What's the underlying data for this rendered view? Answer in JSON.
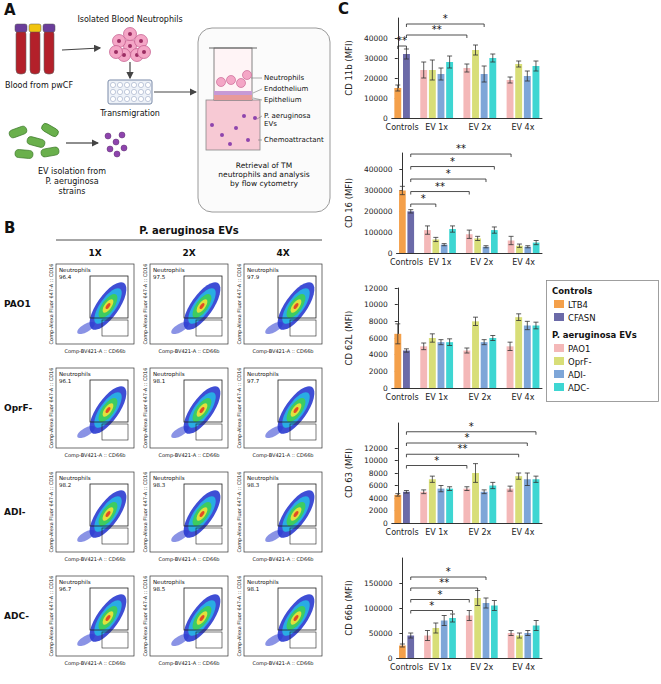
{
  "panel_A": {
    "letter": "A",
    "labels": {
      "blood": "Blood from pwCF",
      "neutrophils_isolated": "Isolated Blood Neutrophils",
      "transmigration": "Transmigration",
      "ev_isolation": "EV isolation from P. aeruginosa strains",
      "insert_neutrophils": "Neutrophils",
      "endothelium": "Endothelium",
      "epithelium": "Epithelium",
      "evs": "P. aeruginosa EVs",
      "chemoattractant": "Chemoattractant",
      "retrieval": "Retrieval of TM neutrophils and analysis by flow cytometry"
    }
  },
  "panel_B": {
    "letter": "B",
    "title": "P. aeruginosa EVs",
    "columns": [
      "1X",
      "2X",
      "4X"
    ],
    "rows": [
      "PAO1",
      "OprF-",
      "ADI-",
      "ADC-"
    ],
    "x_label": "Comp-BV421-A :: CD66b",
    "y_label": "Comp-Alexa Fluor 647-A :: CD16",
    "gate_label": "Neutrophils",
    "gate_percent": [
      [
        96.4,
        97.5,
        97.9
      ],
      [
        96.1,
        98.1,
        97.7
      ],
      [
        98.2,
        98.3,
        98.3
      ],
      [
        96.7,
        98.5,
        98.1
      ]
    ]
  },
  "panel_C": {
    "letter": "C",
    "legend_groups": [
      {
        "title": "Controls",
        "series": [
          "LTB4",
          "CFASN"
        ]
      },
      {
        "title": "P. aeruginosa EVs",
        "series": [
          "PAO1",
          "OprF-",
          "ADI-",
          "ADC-"
        ]
      }
    ]
  },
  "chart_data": [
    {
      "type": "bar",
      "y_label": "CD 11b (MFI)",
      "categories": [
        "Controls",
        "EV 1x",
        "EV 2x",
        "EV 4x"
      ],
      "ylim": [
        0,
        50000
      ],
      "yticks": [
        0,
        10000,
        20000,
        30000,
        40000
      ],
      "series": [
        {
          "name": "LTB4",
          "color": "#F4A04A",
          "values": [
            15000,
            null,
            null,
            null
          ],
          "errors": [
            1500,
            null,
            null,
            null
          ]
        },
        {
          "name": "CFASN",
          "color": "#6B6AA8",
          "values": [
            32000,
            null,
            null,
            null
          ],
          "errors": [
            2500,
            null,
            null,
            null
          ]
        },
        {
          "name": "PAO1",
          "color": "#F4B8B8",
          "values": [
            null,
            24000,
            25000,
            19000
          ],
          "errors": [
            null,
            4000,
            2000,
            1500
          ]
        },
        {
          "name": "OprF-",
          "color": "#D8DE78",
          "values": [
            null,
            24000,
            34000,
            27000
          ],
          "errors": [
            null,
            5000,
            2500,
            1500
          ]
        },
        {
          "name": "ADI-",
          "color": "#7EA6D8",
          "values": [
            null,
            22000,
            22000,
            21000
          ],
          "errors": [
            null,
            3000,
            4000,
            2500
          ]
        },
        {
          "name": "ADC-",
          "color": "#3ED6D2",
          "values": [
            null,
            28000,
            30000,
            26000
          ],
          "errors": [
            null,
            3000,
            2000,
            2500
          ]
        }
      ],
      "significance": [
        {
          "from": [
            "Controls",
            "LTB4"
          ],
          "to": [
            "Controls",
            "CFASN"
          ],
          "y": 36000,
          "label": "**"
        },
        {
          "from": [
            "Controls",
            "CFASN"
          ],
          "to": [
            "EV 2x",
            "PAO1"
          ],
          "y": 41500,
          "label": "**"
        },
        {
          "from": [
            "Controls",
            "CFASN"
          ],
          "to": [
            "EV 2x",
            "ADI-"
          ],
          "y": 47000,
          "label": "*"
        }
      ]
    },
    {
      "type": "bar",
      "y_label": "CD 16 (MFI)",
      "categories": [
        "Controls",
        "EV 1x",
        "EV 2x",
        "EV 4x"
      ],
      "ylim": [
        0,
        480000
      ],
      "yticks": [
        0,
        100000,
        200000,
        300000,
        400000
      ],
      "series": [
        {
          "name": "LTB4",
          "color": "#F4A04A",
          "values": [
            300000,
            null,
            null,
            null
          ],
          "errors": [
            20000,
            null,
            null,
            null
          ]
        },
        {
          "name": "CFASN",
          "color": "#6B6AA8",
          "values": [
            200000,
            null,
            null,
            null
          ],
          "errors": [
            8000,
            null,
            null,
            null
          ]
        },
        {
          "name": "PAO1",
          "color": "#F4B8B8",
          "values": [
            null,
            110000,
            90000,
            60000
          ],
          "errors": [
            null,
            20000,
            20000,
            20000
          ]
        },
        {
          "name": "OprF-",
          "color": "#D8DE78",
          "values": [
            null,
            65000,
            70000,
            35000
          ],
          "errors": [
            null,
            10000,
            10000,
            8000
          ]
        },
        {
          "name": "ADI-",
          "color": "#7EA6D8",
          "values": [
            null,
            40000,
            30000,
            30000
          ],
          "errors": [
            null,
            5000,
            5000,
            5000
          ]
        },
        {
          "name": "ADC-",
          "color": "#3ED6D2",
          "values": [
            null,
            115000,
            110000,
            50000
          ],
          "errors": [
            null,
            15000,
            15000,
            10000
          ]
        }
      ],
      "significance": [
        {
          "from": [
            "Controls",
            "CFASN"
          ],
          "to": [
            "EV 1x",
            "OprF-"
          ],
          "y": 235000,
          "label": "*"
        },
        {
          "from": [
            "Controls",
            "CFASN"
          ],
          "to": [
            "EV 2x",
            "PAO1"
          ],
          "y": 295000,
          "label": "**"
        },
        {
          "from": [
            "Controls",
            "CFASN"
          ],
          "to": [
            "EV 2x",
            "ADI-"
          ],
          "y": 355000,
          "label": "*"
        },
        {
          "from": [
            "Controls",
            "CFASN"
          ],
          "to": [
            "EV 2x",
            "ADC-"
          ],
          "y": 415000,
          "label": "*"
        },
        {
          "from": [
            "Controls",
            "CFASN"
          ],
          "to": [
            "EV 4x",
            "PAO1"
          ],
          "y": 475000,
          "label": "**"
        }
      ]
    },
    {
      "type": "bar",
      "y_label": "CD 62L (MFI)",
      "categories": [
        "Controls",
        "EV 1x",
        "EV 2x",
        "EV 4x"
      ],
      "ylim": [
        0,
        12000
      ],
      "yticks": [
        0,
        2000,
        4000,
        6000,
        8000,
        10000,
        12000
      ],
      "series": [
        {
          "name": "LTB4",
          "color": "#F4A04A",
          "values": [
            6500,
            null,
            null,
            null
          ],
          "errors": [
            1200,
            null,
            null,
            null
          ]
        },
        {
          "name": "CFASN",
          "color": "#6B6AA8",
          "values": [
            4500,
            null,
            null,
            null
          ],
          "errors": [
            200,
            null,
            null,
            null
          ]
        },
        {
          "name": "PAO1",
          "color": "#F4B8B8",
          "values": [
            null,
            5000,
            4500,
            5000
          ],
          "errors": [
            null,
            400,
            300,
            500
          ]
        },
        {
          "name": "OprF-",
          "color": "#D8DE78",
          "values": [
            null,
            6000,
            8000,
            8500
          ],
          "errors": [
            null,
            500,
            500,
            400
          ]
        },
        {
          "name": "ADI-",
          "color": "#7EA6D8",
          "values": [
            null,
            5500,
            5500,
            7500
          ],
          "errors": [
            null,
            300,
            300,
            500
          ]
        },
        {
          "name": "ADC-",
          "color": "#3ED6D2",
          "values": [
            null,
            5500,
            6000,
            7500
          ],
          "errors": [
            null,
            400,
            300,
            400
          ]
        }
      ],
      "significance": []
    },
    {
      "type": "bar",
      "y_label": "CD 63 (MFI)",
      "categories": [
        "Controls",
        "EV 1x",
        "EV 2x",
        "EV 4x"
      ],
      "ylim": [
        0,
        16000
      ],
      "yticks": [
        0,
        2000,
        4000,
        6000,
        8000,
        10000,
        12000
      ],
      "series": [
        {
          "name": "LTB4",
          "color": "#F4A04A",
          "values": [
            4500,
            null,
            null,
            null
          ],
          "errors": [
            200,
            null,
            null,
            null
          ]
        },
        {
          "name": "CFASN",
          "color": "#6B6AA8",
          "values": [
            5000,
            null,
            null,
            null
          ],
          "errors": [
            200,
            null,
            null,
            null
          ]
        },
        {
          "name": "PAO1",
          "color": "#F4B8B8",
          "values": [
            null,
            5000,
            5500,
            5500
          ],
          "errors": [
            null,
            300,
            300,
            400
          ]
        },
        {
          "name": "OprF-",
          "color": "#D8DE78",
          "values": [
            null,
            7000,
            8000,
            7500
          ],
          "errors": [
            null,
            500,
            1500,
            500
          ]
        },
        {
          "name": "ADI-",
          "color": "#7EA6D8",
          "values": [
            null,
            5500,
            5000,
            7000
          ],
          "errors": [
            null,
            500,
            300,
            1000
          ]
        },
        {
          "name": "ADC-",
          "color": "#3ED6D2",
          "values": [
            null,
            5500,
            6000,
            7000
          ],
          "errors": [
            null,
            300,
            500,
            500
          ]
        }
      ],
      "significance": [
        {
          "from": [
            "Controls",
            "CFASN"
          ],
          "to": [
            "EV 2x",
            "PAO1"
          ],
          "y": 9200,
          "label": "*"
        },
        {
          "from": [
            "Controls",
            "CFASN"
          ],
          "to": [
            "EV 4x",
            "OprF-"
          ],
          "y": 11000,
          "label": "**"
        },
        {
          "from": [
            "Controls",
            "CFASN"
          ],
          "to": [
            "EV 4x",
            "ADI-"
          ],
          "y": 12800,
          "label": "*"
        },
        {
          "from": [
            "Controls",
            "CFASN"
          ],
          "to": [
            "EV 4x",
            "ADC-"
          ],
          "y": 14600,
          "label": "*"
        }
      ]
    },
    {
      "type": "bar",
      "y_label": "CD 66b (MFI)",
      "categories": [
        "Controls",
        "EV 1x",
        "EV 2x",
        "EV 4x"
      ],
      "ylim": [
        0,
        200000
      ],
      "yticks": [
        0,
        50000,
        100000,
        150000
      ],
      "series": [
        {
          "name": "LTB4",
          "color": "#F4A04A",
          "values": [
            25000,
            null,
            null,
            null
          ],
          "errors": [
            3000,
            null,
            null,
            null
          ]
        },
        {
          "name": "CFASN",
          "color": "#6B6AA8",
          "values": [
            45000,
            null,
            null,
            null
          ],
          "errors": [
            5000,
            null,
            null,
            null
          ]
        },
        {
          "name": "PAO1",
          "color": "#F4B8B8",
          "values": [
            null,
            45000,
            85000,
            50000
          ],
          "errors": [
            null,
            10000,
            10000,
            5000
          ]
        },
        {
          "name": "OprF-",
          "color": "#D8DE78",
          "values": [
            null,
            60000,
            120000,
            45000
          ],
          "errors": [
            null,
            10000,
            15000,
            5000
          ]
        },
        {
          "name": "ADI-",
          "color": "#7EA6D8",
          "values": [
            null,
            75000,
            110000,
            50000
          ],
          "errors": [
            null,
            10000,
            10000,
            5000
          ]
        },
        {
          "name": "ADC-",
          "color": "#3ED6D2",
          "values": [
            null,
            80000,
            105000,
            65000
          ],
          "errors": [
            null,
            8000,
            10000,
            10000
          ]
        }
      ],
      "significance": [
        {
          "from": [
            "Controls",
            "CFASN"
          ],
          "to": [
            "EV 1x",
            "ADC-"
          ],
          "y": 95000,
          "label": "*"
        },
        {
          "from": [
            "Controls",
            "CFASN"
          ],
          "to": [
            "EV 2x",
            "PAO1"
          ],
          "y": 117000,
          "label": "*"
        },
        {
          "from": [
            "Controls",
            "CFASN"
          ],
          "to": [
            "EV 2x",
            "OprF-"
          ],
          "y": 140000,
          "label": "**"
        },
        {
          "from": [
            "Controls",
            "CFASN"
          ],
          "to": [
            "EV 2x",
            "ADI-"
          ],
          "y": 162000,
          "label": "*"
        }
      ]
    }
  ]
}
